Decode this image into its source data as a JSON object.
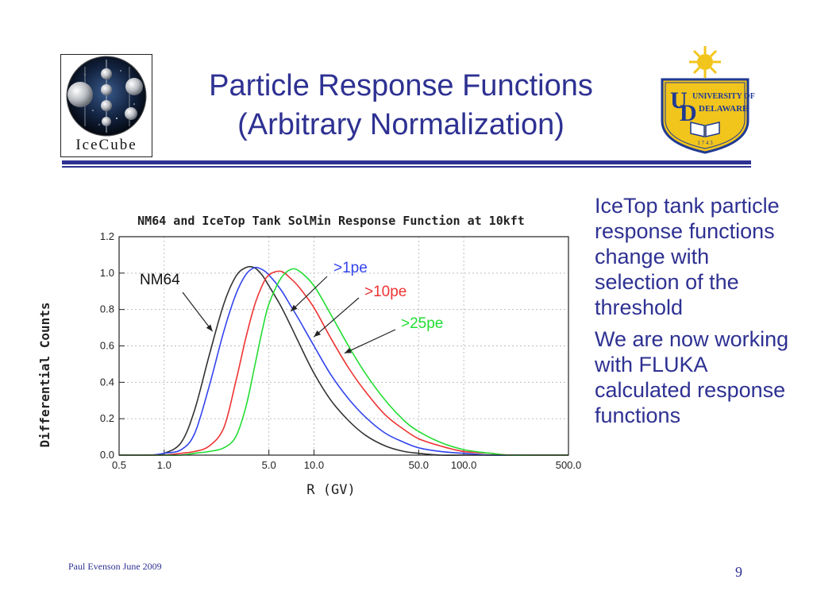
{
  "slide": {
    "title_line1": "Particle Response Functions",
    "title_line2": "(Arbitrary Normalization)",
    "footer_author": "Paul Evenson  June 2009",
    "page_number": "9",
    "colors": {
      "title": "#2e3192",
      "ud_blue": "#1f3a93",
      "ud_gold": "#f2c51d"
    }
  },
  "logos": {
    "icecube_text": "IceCube",
    "ud_name_line1": "UNIVERSITY OF",
    "ud_name_line2": "DELAWARE",
    "ud_year": "1 7 4 3"
  },
  "bullets": [
    "IceTop tank particle response functions change with selection of the threshold",
    "We are now working with FLUKA calculated response functions"
  ],
  "chart_data": {
    "type": "line",
    "title": "NM64 and IceTop Tank SolMin Response Function at 10kft",
    "xlabel": "R (GV)",
    "ylabel": "Differential Counts",
    "x_scale": "log",
    "xlim": [
      0.5,
      500
    ],
    "ylim": [
      0,
      1.2
    ],
    "x_ticks": [
      0.5,
      1.0,
      5.0,
      10.0,
      50.0,
      100.0,
      500.0
    ],
    "x_tick_labels": [
      "0.5",
      "1.0",
      "5.0",
      "10.0",
      "50.0",
      "100.0",
      "500.0"
    ],
    "y_ticks": [
      0.0,
      0.2,
      0.4,
      0.6,
      0.8,
      1.0,
      1.2
    ],
    "y_tick_labels": [
      "0.0",
      "0.2",
      "0.4",
      "0.6",
      "0.8",
      "1.0",
      "1.2"
    ],
    "grid": true,
    "legend": "inline annotations with arrows",
    "series": [
      {
        "name": "NM64",
        "color": "#333333",
        "x": [
          0.5,
          0.8,
          1.0,
          1.3,
          1.6,
          2.0,
          2.5,
          3.0,
          3.5,
          4.0,
          4.5,
          5.0,
          6.0,
          7.0,
          8.0,
          10.0,
          13.0,
          17.0,
          22.0,
          30.0,
          40.0,
          50.0,
          70.0,
          100.0,
          150.0,
          200.0,
          300.0,
          500.0
        ],
        "y": [
          0.0,
          0.0,
          0.01,
          0.07,
          0.25,
          0.55,
          0.83,
          0.98,
          1.03,
          1.03,
          0.99,
          0.93,
          0.82,
          0.71,
          0.61,
          0.45,
          0.3,
          0.19,
          0.11,
          0.05,
          0.02,
          0.01,
          0.0,
          0.0,
          0.0,
          0.0,
          0.0,
          0.0
        ]
      },
      {
        "name": ">1pe",
        "color": "#3344ee",
        "x": [
          0.5,
          0.8,
          1.0,
          1.3,
          1.6,
          2.0,
          2.5,
          3.0,
          3.5,
          4.0,
          4.5,
          5.0,
          6.0,
          7.0,
          8.0,
          10.0,
          13.0,
          17.0,
          22.0,
          30.0,
          40.0,
          50.0,
          70.0,
          100.0,
          150.0,
          200.0,
          300.0,
          500.0
        ],
        "y": [
          0.0,
          0.0,
          0.01,
          0.03,
          0.12,
          0.38,
          0.68,
          0.88,
          0.99,
          1.03,
          1.02,
          0.99,
          0.91,
          0.82,
          0.74,
          0.6,
          0.44,
          0.31,
          0.21,
          0.12,
          0.07,
          0.04,
          0.02,
          0.01,
          0.0,
          0.0,
          0.0,
          0.0
        ]
      },
      {
        "name": ">10pe",
        "color": "#ee3333",
        "x": [
          0.5,
          0.8,
          1.0,
          1.3,
          1.6,
          2.0,
          2.5,
          3.0,
          3.5,
          4.0,
          4.5,
          5.0,
          6.0,
          7.0,
          8.0,
          10.0,
          13.0,
          17.0,
          22.0,
          30.0,
          40.0,
          50.0,
          70.0,
          100.0,
          150.0,
          200.0,
          300.0,
          500.0
        ],
        "y": [
          0.0,
          0.0,
          0.0,
          0.01,
          0.02,
          0.05,
          0.15,
          0.4,
          0.64,
          0.82,
          0.93,
          0.99,
          1.01,
          0.97,
          0.92,
          0.81,
          0.64,
          0.48,
          0.35,
          0.22,
          0.14,
          0.09,
          0.05,
          0.02,
          0.01,
          0.0,
          0.0,
          0.0
        ]
      },
      {
        "name": ">25pe",
        "color": "#22dd33",
        "x": [
          0.5,
          0.8,
          1.0,
          1.3,
          1.6,
          2.0,
          2.5,
          3.0,
          3.5,
          4.0,
          4.5,
          5.0,
          6.0,
          7.0,
          8.0,
          10.0,
          13.0,
          17.0,
          22.0,
          30.0,
          40.0,
          50.0,
          70.0,
          100.0,
          150.0,
          200.0,
          300.0,
          500.0
        ],
        "y": [
          0.0,
          0.0,
          0.0,
          0.0,
          0.01,
          0.02,
          0.04,
          0.1,
          0.26,
          0.48,
          0.68,
          0.83,
          0.97,
          1.02,
          1.01,
          0.93,
          0.77,
          0.6,
          0.45,
          0.3,
          0.19,
          0.13,
          0.07,
          0.03,
          0.01,
          0.0,
          0.0,
          0.0
        ]
      }
    ],
    "annotations": [
      {
        "text": "NM64",
        "color": "#111111",
        "series": "NM64",
        "arrow_to": [
          2.1,
          0.68
        ]
      },
      {
        "text": ">1pe",
        "color": "#3344ee",
        "series": ">1pe",
        "arrow_to": [
          7.0,
          0.79
        ]
      },
      {
        "text": ">10pe",
        "color": "#ee3333",
        "series": ">10pe",
        "arrow_to": [
          10.0,
          0.65
        ]
      },
      {
        "text": ">25pe",
        "color": "#22dd33",
        "series": ">25pe",
        "arrow_to": [
          16.0,
          0.56
        ]
      }
    ]
  }
}
